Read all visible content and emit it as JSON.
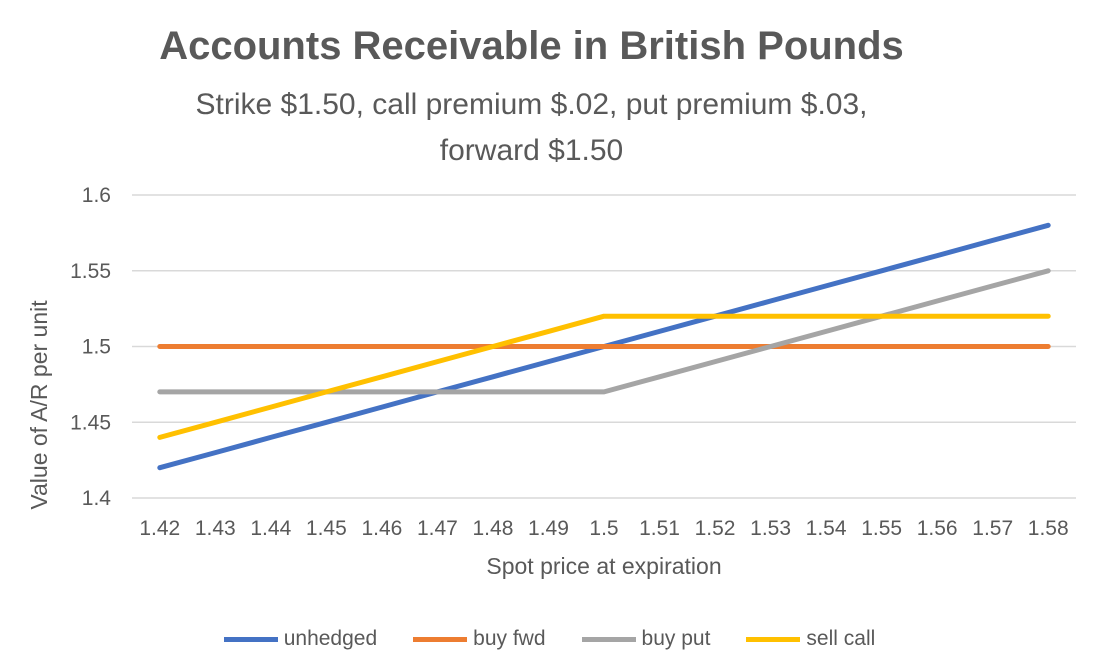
{
  "chart_data": {
    "type": "line",
    "title": "Accounts Receivable in British Pounds",
    "subtitle_lines": [
      "Strike $1.50, call premium $.02, put premium $.03,",
      "forward $1.50"
    ],
    "xlabel": "Spot price at expiration",
    "ylabel": "Value of A/R per unit",
    "x": [
      1.42,
      1.43,
      1.44,
      1.45,
      1.46,
      1.47,
      1.48,
      1.49,
      1.5,
      1.51,
      1.52,
      1.53,
      1.54,
      1.55,
      1.56,
      1.57,
      1.58
    ],
    "x_tick_labels": [
      "1.42",
      "1.43",
      "1.44",
      "1.45",
      "1.46",
      "1.47",
      "1.48",
      "1.49",
      "1.5",
      "1.51",
      "1.52",
      "1.53",
      "1.54",
      "1.55",
      "1.56",
      "1.57",
      "1.58"
    ],
    "ylim": [
      1.4,
      1.6
    ],
    "y_ticks": [
      1.4,
      1.45,
      1.5,
      1.55,
      1.6
    ],
    "y_tick_labels": [
      "1.4",
      "1.45",
      "1.5",
      "1.55",
      "1.6"
    ],
    "grid": true,
    "legend_position": "bottom",
    "series": [
      {
        "name": "unhedged",
        "color": "#4472C4",
        "values": [
          1.42,
          1.43,
          1.44,
          1.45,
          1.46,
          1.47,
          1.48,
          1.49,
          1.5,
          1.51,
          1.52,
          1.53,
          1.54,
          1.55,
          1.56,
          1.57,
          1.58
        ]
      },
      {
        "name": "buy fwd",
        "color": "#ED7D31",
        "values": [
          1.5,
          1.5,
          1.5,
          1.5,
          1.5,
          1.5,
          1.5,
          1.5,
          1.5,
          1.5,
          1.5,
          1.5,
          1.5,
          1.5,
          1.5,
          1.5,
          1.5
        ]
      },
      {
        "name": "buy put",
        "color": "#A5A5A5",
        "values": [
          1.47,
          1.47,
          1.47,
          1.47,
          1.47,
          1.47,
          1.47,
          1.47,
          1.47,
          1.48,
          1.49,
          1.5,
          1.51,
          1.52,
          1.53,
          1.54,
          1.55
        ]
      },
      {
        "name": "sell call",
        "color": "#FFC000",
        "values": [
          1.44,
          1.45,
          1.46,
          1.47,
          1.48,
          1.49,
          1.5,
          1.51,
          1.52,
          1.52,
          1.52,
          1.52,
          1.52,
          1.52,
          1.52,
          1.52,
          1.52
        ]
      }
    ],
    "gridline_color": "#D9D9D9"
  }
}
